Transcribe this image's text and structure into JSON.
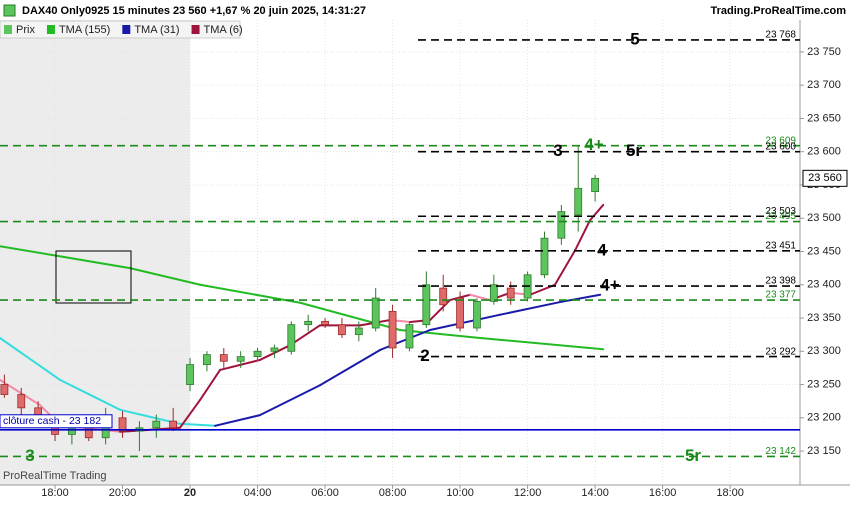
{
  "chart_data": {
    "type": "candlestick",
    "title": "DAX40 Only0925 15 minutes 23 560 +1,67 % 20 juin 2025, 14:31:27",
    "brand": "Trading.ProRealTime.com",
    "footer": "ProRealTime Trading",
    "price_name": "Prix",
    "up_color": "#5cc45c",
    "down_color": "#e06a6a",
    "xlim": [
      -1.63,
      22.07
    ],
    "ylim": [
      23099,
      23798
    ],
    "grid": true,
    "xticks": [
      {
        "value": 0,
        "label": "18:00"
      },
      {
        "value": 2,
        "label": "20:00"
      },
      {
        "value": 4,
        "label": "20"
      },
      {
        "value": 6,
        "label": "04:00"
      },
      {
        "value": 8,
        "label": "06:00"
      },
      {
        "value": 10,
        "label": "08:00"
      },
      {
        "value": 12,
        "label": "10:00"
      },
      {
        "value": 14,
        "label": "12:00"
      },
      {
        "value": 16,
        "label": "14:00"
      },
      {
        "value": 18,
        "label": "16:00"
      },
      {
        "value": 20,
        "label": "18:00"
      }
    ],
    "yticks": [
      {
        "value": 23150,
        "label": "23 150"
      },
      {
        "value": 23200,
        "label": "23 200"
      },
      {
        "value": 23250,
        "label": "23 250"
      },
      {
        "value": 23300,
        "label": "23 300"
      },
      {
        "value": 23350,
        "label": "23 350"
      },
      {
        "value": 23400,
        "label": "23 400"
      },
      {
        "value": 23450,
        "label": "23 450"
      },
      {
        "value": 23500,
        "label": "23 500"
      },
      {
        "value": 23550,
        "label": "23 550"
      },
      {
        "value": 23600,
        "label": "23 600"
      },
      {
        "value": 23650,
        "label": "23 650"
      },
      {
        "value": 23700,
        "label": "23 700"
      },
      {
        "value": 23750,
        "label": "23 750"
      }
    ],
    "x": [
      -1.5,
      -1,
      -0.5,
      0,
      0.5,
      1,
      1.5,
      2,
      2.5,
      3,
      3.5,
      4,
      4.5,
      5,
      5.5,
      6,
      6.5,
      7,
      7.5,
      8,
      8.5,
      9,
      9.5,
      10,
      10.5,
      11,
      11.5,
      12,
      12.5,
      13,
      13.5,
      14,
      14.5,
      15,
      15.5,
      16
    ],
    "open": [
      23250,
      23235,
      23215,
      23190,
      23175,
      23185,
      23170,
      23200,
      23180,
      23185,
      23195,
      23250,
      23280,
      23295,
      23285,
      23292,
      23300,
      23300,
      23340,
      23345,
      23340,
      23325,
      23335,
      23360,
      23305,
      23340,
      23395,
      23380,
      23335,
      23375,
      23395,
      23380,
      23415,
      23470,
      23505,
      23540
    ],
    "high": [
      23265,
      23245,
      23225,
      23205,
      23195,
      23200,
      23215,
      23210,
      23195,
      23205,
      23215,
      23290,
      23300,
      23305,
      23300,
      23305,
      23310,
      23345,
      23355,
      23350,
      23350,
      23345,
      23395,
      23370,
      23345,
      23420,
      23415,
      23390,
      23380,
      23415,
      23405,
      23420,
      23480,
      23520,
      23610,
      23565
    ],
    "low": [
      23230,
      23205,
      23185,
      23165,
      23160,
      23165,
      23160,
      23170,
      23150,
      23170,
      23180,
      23240,
      23270,
      23275,
      23275,
      23285,
      23290,
      23295,
      23330,
      23335,
      23320,
      23315,
      23330,
      23290,
      23300,
      23335,
      23360,
      23330,
      23330,
      23370,
      23370,
      23375,
      23410,
      23460,
      23480,
      23525
    ],
    "close": [
      23235,
      23215,
      23195,
      23175,
      23185,
      23170,
      23200,
      23180,
      23185,
      23195,
      23185,
      23280,
      23295,
      23285,
      23292,
      23300,
      23305,
      23340,
      23345,
      23340,
      23325,
      23335,
      23380,
      23305,
      23340,
      23400,
      23370,
      23335,
      23375,
      23400,
      23380,
      23415,
      23470,
      23510,
      23545,
      23560
    ],
    "series": [
      {
        "name": "TMA (155)",
        "color": "#22bb22",
        "x": [
          -1.63,
          2.22,
          4.3,
          7.26,
          10.22,
          12.59,
          16.24
        ],
        "values": [
          23458,
          23425,
          23400,
          23373,
          23332,
          23320,
          23303
        ]
      },
      {
        "name": "TMA (31)",
        "color": "#1a1aaa",
        "down_color": "#33dddd",
        "x": [
          -1.63,
          0.15,
          1.93,
          3.7,
          4.74,
          6.07,
          7.85,
          9.63,
          11.11,
          13.19,
          14.96,
          16.15
        ],
        "values": [
          23320,
          23257,
          23212,
          23191,
          23188,
          23204,
          23249,
          23302,
          23332,
          23355,
          23374,
          23385
        ]
      },
      {
        "name": "TMA (6)",
        "color": "#a0143c",
        "down_color": "#f08aa8",
        "x": [
          -1.63,
          -0.44,
          0.15,
          1.93,
          3.7,
          4.3,
          4.89,
          6.07,
          6.96,
          7.85,
          9.04,
          9.93,
          10.52,
          11.11,
          11.7,
          12.3,
          12.89,
          13.48,
          14.07,
          14.81,
          15.41,
          15.85,
          16.24
        ],
        "values": [
          23257,
          23219,
          23189,
          23179,
          23185,
          23227,
          23272,
          23287,
          23309,
          23339,
          23339,
          23347,
          23344,
          23347,
          23377,
          23385,
          23377,
          23388,
          23385,
          23400,
          23452,
          23497,
          23520
        ]
      }
    ],
    "levels": [
      {
        "value": 23768,
        "label": "23 768",
        "color": "#000000",
        "annotations": [
          "5"
        ]
      },
      {
        "value": 23609,
        "label": "23 609",
        "color": "#1a8a1a",
        "annotations": [
          "4+"
        ]
      },
      {
        "value": 23600,
        "label": "23 600",
        "color": "#000000",
        "annotations": [
          "3",
          "5r"
        ]
      },
      {
        "value": 23503,
        "label": "23 503",
        "color": "#000000"
      },
      {
        "value": 23495,
        "label": "23 495",
        "color": "#1a8a1a"
      },
      {
        "value": 23451,
        "label": "23 451",
        "color": "#000000",
        "annotations": [
          "4"
        ]
      },
      {
        "value": 23398,
        "label": "23 398",
        "color": "#000000",
        "annotations": [
          "4+"
        ]
      },
      {
        "value": 23377,
        "label": "23 377",
        "color": "#1a8a1a"
      },
      {
        "value": 23292,
        "label": "23 292",
        "color": "#000000",
        "annotations": [
          "2"
        ]
      },
      {
        "value": 23142,
        "label": "23 142",
        "color": "#1a8a1a",
        "annotations": [
          "5r",
          "3"
        ]
      }
    ],
    "close_cash": {
      "value": 23182,
      "label": "clôture cash - 23 182",
      "color": "#0000cc"
    },
    "last_price": {
      "value": 23560,
      "label": "23 560"
    }
  }
}
